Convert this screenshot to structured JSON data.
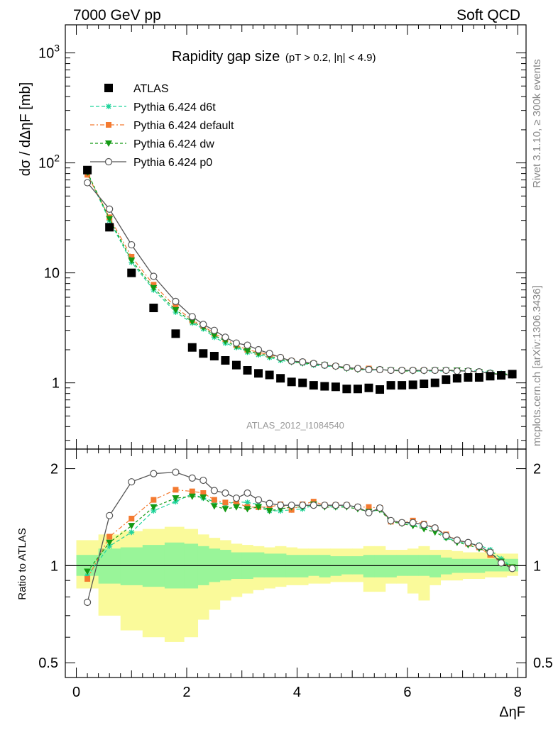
{
  "header": {
    "left_label": "7000 GeV pp",
    "right_label": "Soft QCD"
  },
  "side_labels": {
    "rivet": "Rivet 3.1.10, ≥ 300k events",
    "mcplots": "mcplots.cern.ch [arXiv:1306.3436]"
  },
  "watermark": "ATLAS_2012_I1084540",
  "colors": {
    "atlas": "#000000",
    "d6t": "#1fd39a",
    "default": "#f47a30",
    "dw": "#149a14",
    "p0": "#555555",
    "band_inner": "#99f599",
    "band_outer": "#fafa9a"
  },
  "chart_data": [
    {
      "type": "scatter",
      "panel": "main",
      "title": "Rapidity gap size",
      "subtitle": "(pT > 0.2, |η| < 4.9)",
      "ylabel": "dσ / dΔηF [mb]",
      "xlabel": "ΔηF",
      "xlim": [
        -0.2,
        8.15
      ],
      "ylim": [
        0.25,
        1800
      ],
      "yscale": "log",
      "x_ticks": [
        "0",
        "2",
        "4",
        "6",
        "8"
      ],
      "y_ticks": [
        "10^3",
        "10^2",
        "10",
        "1"
      ],
      "legend_position": "top-left",
      "x": [
        0.2,
        0.6,
        1.0,
        1.4,
        1.8,
        2.1,
        2.3,
        2.5,
        2.7,
        2.9,
        3.1,
        3.3,
        3.5,
        3.7,
        3.9,
        4.1,
        4.3,
        4.5,
        4.7,
        4.9,
        5.1,
        5.3,
        5.5,
        5.7,
        5.9,
        6.1,
        6.3,
        6.5,
        6.7,
        6.9,
        7.1,
        7.3,
        7.5,
        7.7,
        7.9
      ],
      "series": [
        {
          "name": "ATLAS",
          "key": "atlas",
          "values": [
            86,
            26,
            10,
            4.8,
            2.8,
            2.1,
            1.85,
            1.75,
            1.6,
            1.45,
            1.3,
            1.22,
            1.18,
            1.1,
            1.02,
            1.0,
            0.95,
            0.93,
            0.92,
            0.88,
            0.88,
            0.9,
            0.87,
            0.95,
            0.95,
            0.96,
            0.98,
            1.0,
            1.07,
            1.1,
            1.12,
            1.12,
            1.15,
            1.17,
            1.2
          ]
        },
        {
          "name": "Pythia 6.424 d6t",
          "key": "d6t",
          "values": [
            80,
            30,
            12.5,
            7.0,
            4.4,
            3.5,
            3.1,
            2.6,
            2.3,
            2.1,
            1.9,
            1.8,
            1.7,
            1.6,
            1.55,
            1.5,
            1.45,
            1.42,
            1.4,
            1.35,
            1.33,
            1.3,
            1.32,
            1.3,
            1.3,
            1.28,
            1.28,
            1.28,
            1.28,
            1.28,
            1.3,
            1.28,
            1.25,
            1.22,
            1.2
          ]
        },
        {
          "name": "Pythia 6.424 default",
          "key": "default",
          "values": [
            78,
            32,
            14,
            7.8,
            4.9,
            3.7,
            3.3,
            2.8,
            2.5,
            2.2,
            2.0,
            1.9,
            1.8,
            1.7,
            1.58,
            1.55,
            1.5,
            1.45,
            1.42,
            1.38,
            1.35,
            1.35,
            1.32,
            1.3,
            1.3,
            1.3,
            1.3,
            1.3,
            1.3,
            1.3,
            1.28,
            1.25,
            1.22,
            1.2,
            1.18
          ]
        },
        {
          "name": "Pythia 6.424 dw",
          "key": "dw",
          "values": [
            82,
            31,
            13,
            7.3,
            4.6,
            3.6,
            3.2,
            2.7,
            2.4,
            2.15,
            1.95,
            1.85,
            1.75,
            1.65,
            1.55,
            1.52,
            1.48,
            1.45,
            1.4,
            1.35,
            1.32,
            1.32,
            1.32,
            1.3,
            1.28,
            1.28,
            1.28,
            1.3,
            1.3,
            1.3,
            1.28,
            1.26,
            1.22,
            1.2,
            1.2
          ]
        },
        {
          "name": "Pythia 6.424 p0",
          "key": "p0",
          "values": [
            66,
            38,
            18,
            9.3,
            5.5,
            4.0,
            3.4,
            3.0,
            2.6,
            2.3,
            2.2,
            2.0,
            1.85,
            1.7,
            1.58,
            1.55,
            1.5,
            1.45,
            1.42,
            1.38,
            1.35,
            1.32,
            1.32,
            1.3,
            1.3,
            1.3,
            1.3,
            1.3,
            1.3,
            1.28,
            1.28,
            1.26,
            1.22,
            1.18,
            1.18
          ]
        }
      ]
    },
    {
      "type": "scatter",
      "panel": "ratio",
      "ylabel": "Ratio to ATLAS",
      "xlabel": "ΔηF",
      "xlim": [
        -0.2,
        8.15
      ],
      "ylim": [
        0.45,
        2.3
      ],
      "yscale": "log",
      "y_ticks": [
        "2",
        "1",
        "0.5"
      ],
      "reference_line": 1,
      "x": [
        0.2,
        0.6,
        1.0,
        1.4,
        1.8,
        2.1,
        2.3,
        2.5,
        2.7,
        2.9,
        3.1,
        3.3,
        3.5,
        3.7,
        3.9,
        4.1,
        4.3,
        4.5,
        4.7,
        4.9,
        5.1,
        5.3,
        5.5,
        5.7,
        5.9,
        6.1,
        6.3,
        6.5,
        6.7,
        6.9,
        7.1,
        7.3,
        7.5,
        7.7,
        7.9
      ],
      "band_inner": {
        "lower": [
          0.93,
          0.88,
          0.87,
          0.86,
          0.85,
          0.85,
          0.87,
          0.89,
          0.9,
          0.91,
          0.91,
          0.92,
          0.92,
          0.92,
          0.92,
          0.92,
          0.93,
          0.92,
          0.93,
          0.94,
          0.94,
          0.92,
          0.92,
          0.92,
          0.93,
          0.93,
          0.93,
          0.92,
          0.94,
          0.95,
          0.95,
          0.95,
          0.96,
          0.96,
          0.96
        ]
      },
      "band_inner_upper": [
        1.08,
        1.13,
        1.14,
        1.16,
        1.18,
        1.17,
        1.15,
        1.13,
        1.12,
        1.1,
        1.1,
        1.1,
        1.09,
        1.09,
        1.08,
        1.08,
        1.08,
        1.08,
        1.07,
        1.07,
        1.07,
        1.08,
        1.08,
        1.08,
        1.08,
        1.08,
        1.08,
        1.08,
        1.06,
        1.05,
        1.05,
        1.05,
        1.05,
        1.05,
        1.05
      ],
      "band_outer_lower": [
        0.85,
        0.7,
        0.63,
        0.6,
        0.58,
        0.6,
        0.68,
        0.73,
        0.78,
        0.8,
        0.82,
        0.84,
        0.85,
        0.86,
        0.87,
        0.87,
        0.88,
        0.88,
        0.89,
        0.89,
        0.89,
        0.83,
        0.83,
        0.88,
        0.88,
        0.82,
        0.78,
        0.87,
        0.9,
        0.9,
        0.91,
        0.91,
        0.92,
        0.92,
        0.93
      ],
      "band_outer_upper": [
        1.2,
        1.25,
        1.28,
        1.3,
        1.32,
        1.3,
        1.25,
        1.22,
        1.2,
        1.17,
        1.16,
        1.15,
        1.14,
        1.15,
        1.14,
        1.13,
        1.13,
        1.13,
        1.13,
        1.13,
        1.13,
        1.15,
        1.15,
        1.12,
        1.12,
        1.13,
        1.15,
        1.12,
        1.12,
        1.11,
        1.1,
        1.1,
        1.1,
        1.09,
        1.09
      ],
      "series": [
        {
          "name": "Pythia 6.424 d6t",
          "key": "d6t",
          "values": [
            0.93,
            1.15,
            1.27,
            1.48,
            1.58,
            1.67,
            1.62,
            1.58,
            1.55,
            1.58,
            1.57,
            1.55,
            1.48,
            1.48,
            1.49,
            1.5,
            1.54,
            1.53,
            1.52,
            1.53,
            1.52,
            1.46,
            1.5,
            1.38,
            1.36,
            1.34,
            1.32,
            1.3,
            1.22,
            1.19,
            1.17,
            1.16,
            1.12,
            1.05,
            0.99
          ]
        },
        {
          "name": "Pythia 6.424 default",
          "key": "default",
          "values": [
            0.91,
            1.23,
            1.4,
            1.6,
            1.72,
            1.7,
            1.68,
            1.6,
            1.57,
            1.57,
            1.52,
            1.52,
            1.52,
            1.55,
            1.49,
            1.55,
            1.58,
            1.54,
            1.54,
            1.54,
            1.52,
            1.52,
            1.51,
            1.37,
            1.36,
            1.38,
            1.35,
            1.31,
            1.25,
            1.2,
            1.17,
            1.14,
            1.08,
            1.02,
            0.99
          ]
        },
        {
          "name": "Pythia 6.424 dw",
          "key": "dw",
          "values": [
            0.96,
            1.18,
            1.33,
            1.52,
            1.62,
            1.64,
            1.63,
            1.53,
            1.5,
            1.52,
            1.5,
            1.52,
            1.48,
            1.5,
            1.52,
            1.52,
            1.55,
            1.52,
            1.52,
            1.52,
            1.5,
            1.47,
            1.49,
            1.37,
            1.35,
            1.33,
            1.3,
            1.27,
            1.22,
            1.18,
            1.16,
            1.13,
            1.1,
            1.03,
            0.99
          ]
        },
        {
          "name": "Pythia 6.424 p0",
          "key": "p0",
          "values": [
            0.77,
            1.43,
            1.82,
            1.93,
            1.95,
            1.87,
            1.84,
            1.71,
            1.68,
            1.62,
            1.68,
            1.6,
            1.56,
            1.54,
            1.54,
            1.54,
            1.54,
            1.54,
            1.54,
            1.54,
            1.52,
            1.46,
            1.51,
            1.38,
            1.36,
            1.36,
            1.34,
            1.31,
            1.24,
            1.2,
            1.18,
            1.15,
            1.1,
            1.02,
            0.98
          ]
        }
      ]
    }
  ]
}
